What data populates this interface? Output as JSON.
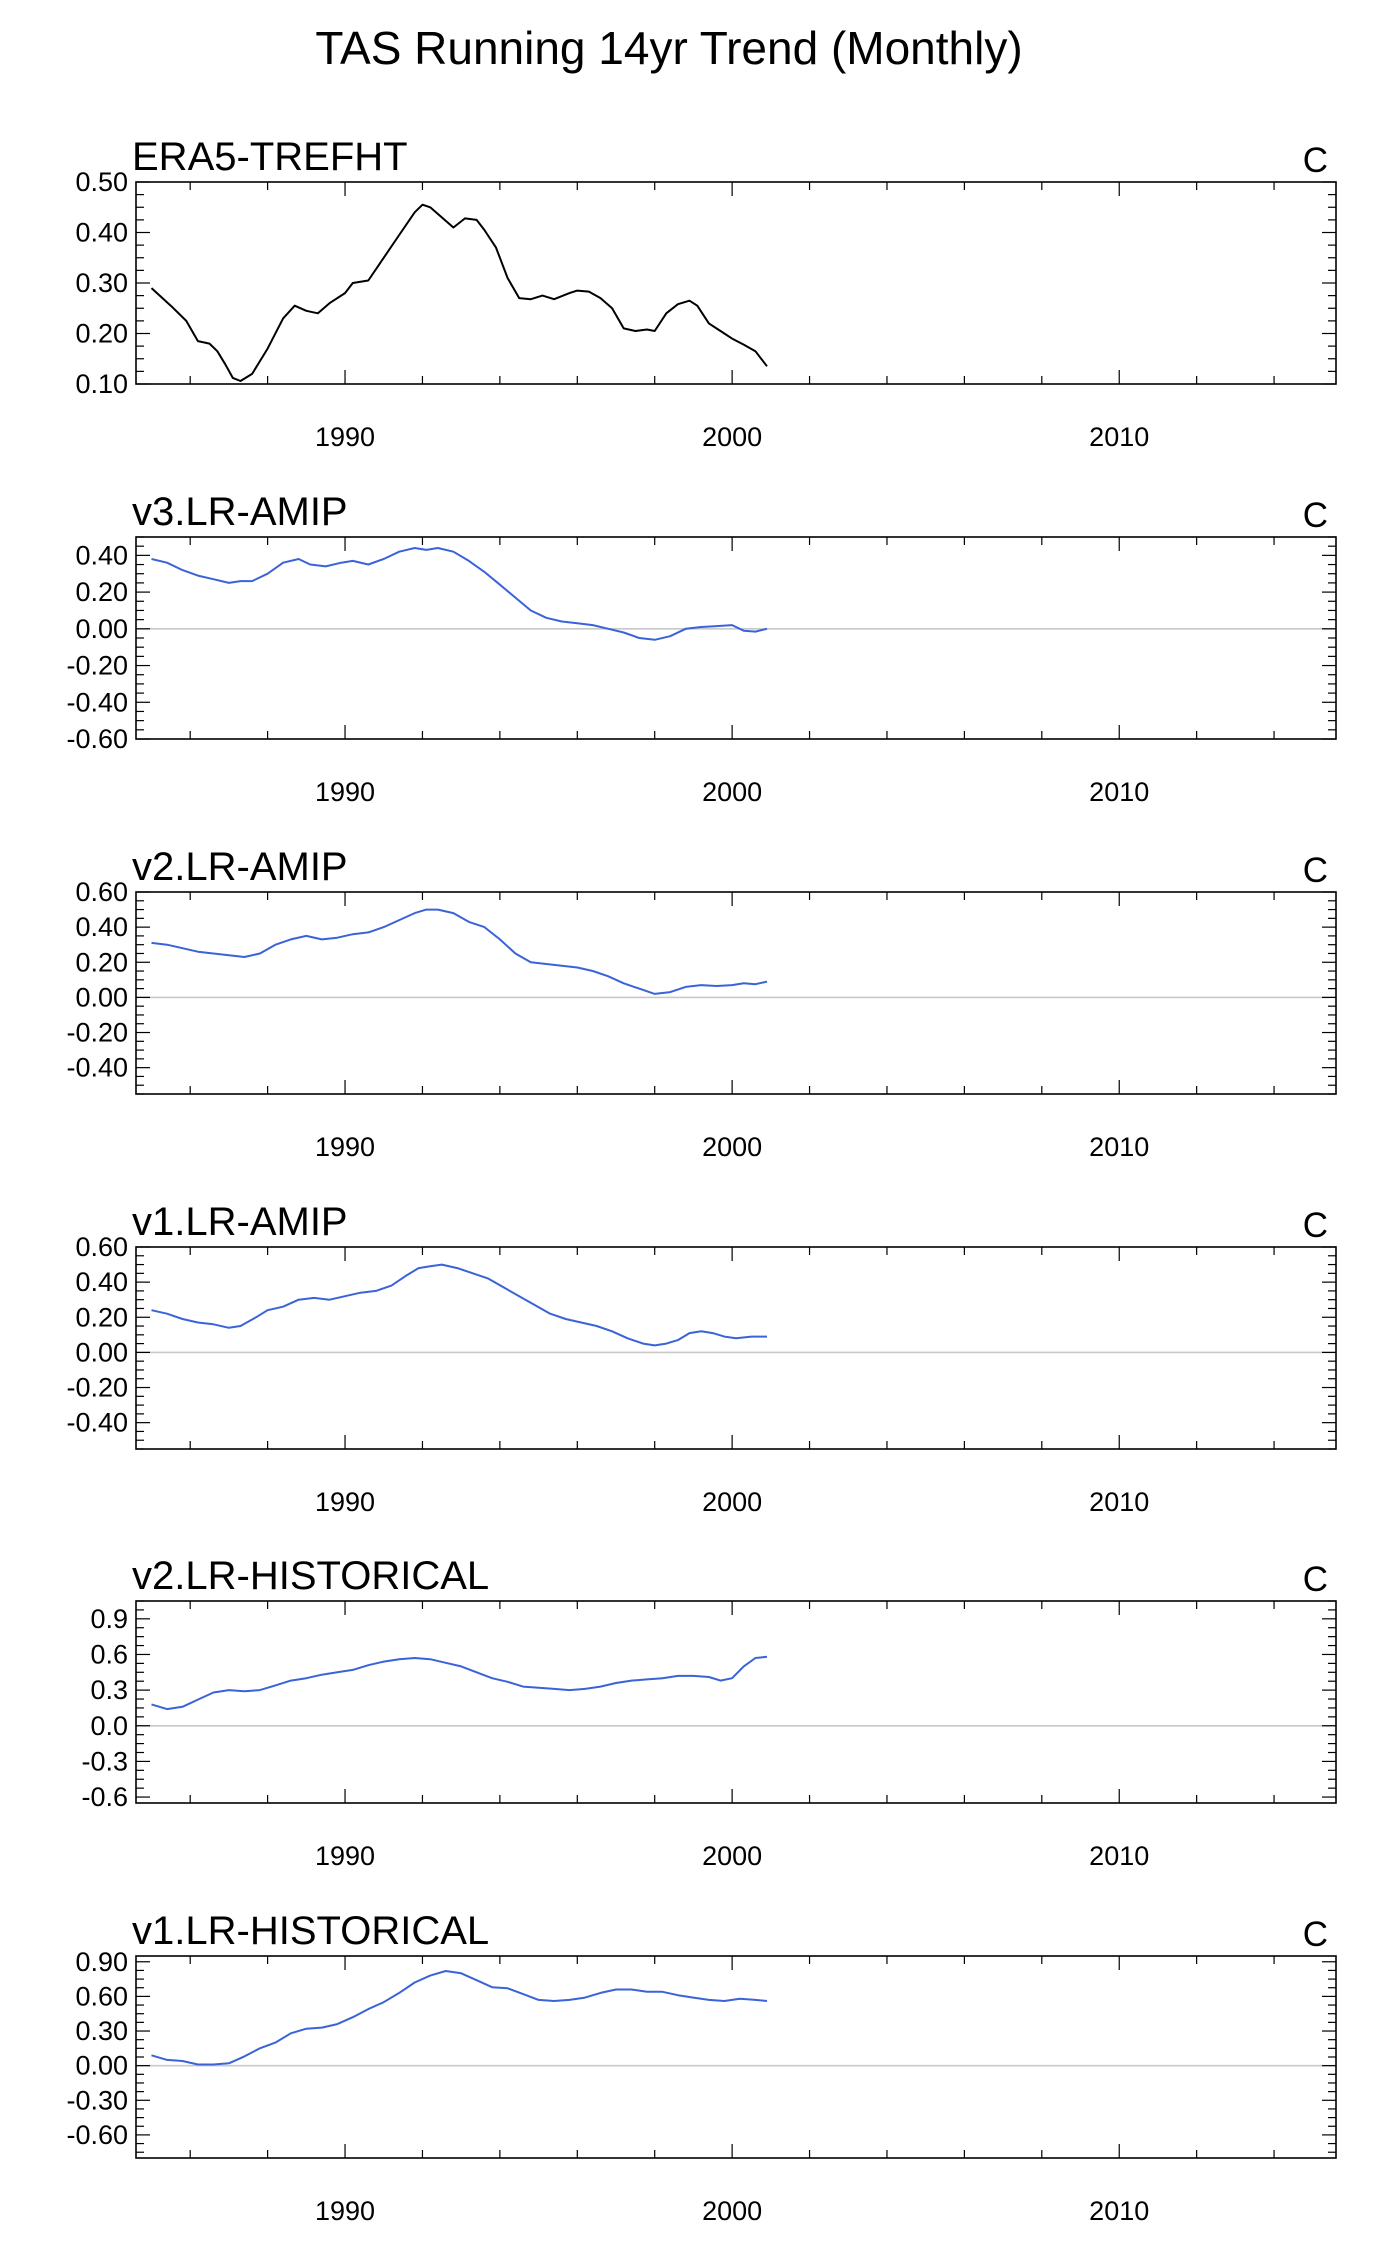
{
  "figure": {
    "title": "TAS Running 14yr Trend (Monthly)"
  },
  "chart_data": [
    {
      "type": "line",
      "title": "ERA5-TREFHT",
      "units": "C",
      "color": "#000000",
      "xlim": [
        1984.6,
        2015.6
      ],
      "ylim": [
        0.1,
        0.5
      ],
      "ytick_values": [
        0.1,
        0.2,
        0.3,
        0.4,
        0.5
      ],
      "ytick_labels": [
        "0.10",
        "0.20",
        "0.30",
        "0.40",
        "0.50"
      ],
      "xtick_values": [
        1990,
        2000,
        2010
      ],
      "xtick_labels": [
        "1990",
        "2000",
        "2010"
      ],
      "zero_line": false,
      "x": [
        1985.0,
        1985.5,
        1985.9,
        1986.2,
        1986.5,
        1986.7,
        1986.9,
        1987.1,
        1987.3,
        1987.6,
        1988.0,
        1988.4,
        1988.7,
        1989.0,
        1989.3,
        1989.6,
        1990.0,
        1990.2,
        1990.6,
        1991.0,
        1991.4,
        1991.8,
        1992.0,
        1992.2,
        1992.5,
        1992.8,
        1993.1,
        1993.4,
        1993.6,
        1993.9,
        1994.2,
        1994.5,
        1994.8,
        1995.1,
        1995.4,
        1995.8,
        1996.0,
        1996.3,
        1996.6,
        1996.9,
        1997.2,
        1997.5,
        1997.8,
        1998.0,
        1998.3,
        1998.6,
        1998.9,
        1999.1,
        1999.4,
        1999.7,
        2000.0,
        2000.3,
        2000.6,
        2000.9
      ],
      "y": [
        0.29,
        0.255,
        0.225,
        0.185,
        0.18,
        0.165,
        0.14,
        0.112,
        0.106,
        0.12,
        0.17,
        0.23,
        0.255,
        0.245,
        0.24,
        0.26,
        0.28,
        0.3,
        0.305,
        0.35,
        0.395,
        0.44,
        0.455,
        0.45,
        0.43,
        0.41,
        0.428,
        0.425,
        0.405,
        0.37,
        0.31,
        0.27,
        0.268,
        0.275,
        0.268,
        0.28,
        0.285,
        0.283,
        0.27,
        0.25,
        0.21,
        0.205,
        0.208,
        0.205,
        0.24,
        0.258,
        0.265,
        0.255,
        0.22,
        0.205,
        0.19,
        0.178,
        0.165,
        0.135
      ]
    },
    {
      "type": "line",
      "title": "v3.LR-AMIP",
      "units": "C",
      "color": "#3a63d9",
      "xlim": [
        1984.6,
        2015.6
      ],
      "ylim": [
        -0.6,
        0.5
      ],
      "ytick_values": [
        -0.6,
        -0.4,
        -0.2,
        0.0,
        0.2,
        0.4
      ],
      "ytick_labels": [
        "-0.60",
        "-0.40",
        "-0.20",
        "0.00",
        "0.20",
        "0.40"
      ],
      "xtick_values": [
        1990,
        2000,
        2010
      ],
      "xtick_labels": [
        "1990",
        "2000",
        "2010"
      ],
      "zero_line": true,
      "x": [
        1985.0,
        1985.4,
        1985.8,
        1986.2,
        1986.6,
        1987.0,
        1987.3,
        1987.6,
        1988.0,
        1988.4,
        1988.8,
        1989.1,
        1989.5,
        1989.9,
        1990.2,
        1990.6,
        1991.0,
        1991.4,
        1991.8,
        1992.1,
        1992.4,
        1992.8,
        1993.2,
        1993.6,
        1994.0,
        1994.4,
        1994.8,
        1995.2,
        1995.6,
        1996.0,
        1996.4,
        1996.8,
        1997.2,
        1997.6,
        1998.0,
        1998.4,
        1998.8,
        1999.2,
        1999.6,
        2000.0,
        2000.3,
        2000.6,
        2000.9
      ],
      "y": [
        0.38,
        0.36,
        0.32,
        0.29,
        0.27,
        0.25,
        0.26,
        0.26,
        0.3,
        0.36,
        0.38,
        0.35,
        0.34,
        0.36,
        0.37,
        0.35,
        0.38,
        0.42,
        0.44,
        0.43,
        0.44,
        0.42,
        0.37,
        0.31,
        0.24,
        0.17,
        0.1,
        0.06,
        0.04,
        0.03,
        0.02,
        0.0,
        -0.02,
        -0.05,
        -0.06,
        -0.04,
        0.0,
        0.01,
        0.015,
        0.02,
        -0.01,
        -0.015,
        0.0
      ]
    },
    {
      "type": "line",
      "title": "v2.LR-AMIP",
      "units": "C",
      "color": "#3a63d9",
      "xlim": [
        1984.6,
        2015.6
      ],
      "ylim": [
        -0.55,
        0.6
      ],
      "ytick_values": [
        -0.4,
        -0.2,
        0.0,
        0.2,
        0.4,
        0.6
      ],
      "ytick_labels": [
        "-0.40",
        "-0.20",
        "0.00",
        "0.20",
        "0.40",
        "0.60"
      ],
      "xtick_values": [
        1990,
        2000,
        2010
      ],
      "xtick_labels": [
        "1990",
        "2000",
        "2010"
      ],
      "zero_line": true,
      "x": [
        1985.0,
        1985.4,
        1985.8,
        1986.2,
        1986.6,
        1987.0,
        1987.4,
        1987.8,
        1988.2,
        1988.6,
        1989.0,
        1989.4,
        1989.8,
        1990.2,
        1990.6,
        1991.0,
        1991.4,
        1991.8,
        1992.1,
        1992.4,
        1992.8,
        1993.2,
        1993.6,
        1994.0,
        1994.4,
        1994.8,
        1995.2,
        1995.6,
        1996.0,
        1996.4,
        1996.8,
        1997.2,
        1997.6,
        1998.0,
        1998.4,
        1998.8,
        1999.2,
        1999.6,
        2000.0,
        2000.3,
        2000.6,
        2000.9
      ],
      "y": [
        0.31,
        0.3,
        0.28,
        0.26,
        0.25,
        0.24,
        0.23,
        0.25,
        0.3,
        0.33,
        0.35,
        0.33,
        0.34,
        0.36,
        0.37,
        0.4,
        0.44,
        0.48,
        0.5,
        0.5,
        0.48,
        0.43,
        0.4,
        0.33,
        0.25,
        0.2,
        0.19,
        0.18,
        0.17,
        0.15,
        0.12,
        0.08,
        0.05,
        0.02,
        0.03,
        0.06,
        0.07,
        0.065,
        0.07,
        0.08,
        0.075,
        0.09
      ]
    },
    {
      "type": "line",
      "title": "v1.LR-AMIP",
      "units": "C",
      "color": "#3a63d9",
      "xlim": [
        1984.6,
        2015.6
      ],
      "ylim": [
        -0.55,
        0.6
      ],
      "ytick_values": [
        -0.4,
        -0.2,
        0.0,
        0.2,
        0.4,
        0.6
      ],
      "ytick_labels": [
        "-0.40",
        "-0.20",
        "0.00",
        "0.20",
        "0.40",
        "0.60"
      ],
      "xtick_values": [
        1990,
        2000,
        2010
      ],
      "xtick_labels": [
        "1990",
        "2000",
        "2010"
      ],
      "zero_line": true,
      "x": [
        1985.0,
        1985.4,
        1985.8,
        1986.2,
        1986.6,
        1987.0,
        1987.3,
        1987.7,
        1988.0,
        1988.4,
        1988.8,
        1989.2,
        1989.6,
        1990.0,
        1990.4,
        1990.8,
        1991.2,
        1991.6,
        1991.9,
        1992.2,
        1992.5,
        1992.9,
        1993.3,
        1993.7,
        1994.1,
        1994.5,
        1994.9,
        1995.3,
        1995.7,
        1996.1,
        1996.5,
        1996.9,
        1997.3,
        1997.7,
        1998.0,
        1998.3,
        1998.6,
        1998.9,
        1999.2,
        1999.5,
        1999.8,
        2000.1,
        2000.5,
        2000.9
      ],
      "y": [
        0.24,
        0.22,
        0.19,
        0.17,
        0.16,
        0.14,
        0.15,
        0.2,
        0.24,
        0.26,
        0.3,
        0.31,
        0.3,
        0.32,
        0.34,
        0.35,
        0.38,
        0.44,
        0.48,
        0.49,
        0.5,
        0.48,
        0.45,
        0.42,
        0.37,
        0.32,
        0.27,
        0.22,
        0.19,
        0.17,
        0.15,
        0.12,
        0.08,
        0.05,
        0.04,
        0.05,
        0.07,
        0.11,
        0.12,
        0.11,
        0.09,
        0.08,
        0.09,
        0.09
      ]
    },
    {
      "type": "line",
      "title": "v2.LR-HISTORICAL",
      "units": "C",
      "color": "#3a63d9",
      "xlim": [
        1984.6,
        2015.6
      ],
      "ylim": [
        -0.65,
        1.05
      ],
      "ytick_values": [
        -0.6,
        -0.3,
        0.0,
        0.3,
        0.6,
        0.9
      ],
      "ytick_labels": [
        "-0.6",
        "-0.3",
        "0.0",
        "0.3",
        "0.6",
        "0.9"
      ],
      "xtick_values": [
        1990,
        2000,
        2010
      ],
      "xtick_labels": [
        "1990",
        "2000",
        "2010"
      ],
      "zero_line": true,
      "x": [
        1985.0,
        1985.4,
        1985.8,
        1986.2,
        1986.6,
        1987.0,
        1987.4,
        1987.8,
        1988.2,
        1988.6,
        1989.0,
        1989.4,
        1989.8,
        1990.2,
        1990.6,
        1991.0,
        1991.4,
        1991.8,
        1992.2,
        1992.6,
        1993.0,
        1993.4,
        1993.8,
        1994.2,
        1994.6,
        1995.0,
        1995.4,
        1995.8,
        1996.2,
        1996.6,
        1997.0,
        1997.4,
        1997.8,
        1998.2,
        1998.6,
        1999.0,
        1999.4,
        1999.7,
        2000.0,
        2000.3,
        2000.6,
        2000.9
      ],
      "y": [
        0.18,
        0.14,
        0.16,
        0.22,
        0.28,
        0.3,
        0.29,
        0.3,
        0.34,
        0.38,
        0.4,
        0.43,
        0.45,
        0.47,
        0.51,
        0.54,
        0.56,
        0.57,
        0.56,
        0.53,
        0.5,
        0.45,
        0.4,
        0.37,
        0.33,
        0.32,
        0.31,
        0.3,
        0.31,
        0.33,
        0.36,
        0.38,
        0.39,
        0.4,
        0.42,
        0.42,
        0.41,
        0.38,
        0.4,
        0.5,
        0.57,
        0.58
      ]
    },
    {
      "type": "line",
      "title": "v1.LR-HISTORICAL",
      "units": "C",
      "color": "#3a63d9",
      "xlim": [
        1984.6,
        2015.6
      ],
      "ylim": [
        -0.8,
        0.95
      ],
      "ytick_values": [
        -0.6,
        -0.3,
        0.0,
        0.3,
        0.6,
        0.9
      ],
      "ytick_labels": [
        "-0.60",
        "-0.30",
        "0.00",
        "0.30",
        "0.60",
        "0.90"
      ],
      "xtick_values": [
        1990,
        2000,
        2010
      ],
      "xtick_labels": [
        "1990",
        "2000",
        "2010"
      ],
      "zero_line": true,
      "x": [
        1985.0,
        1985.4,
        1985.8,
        1986.2,
        1986.6,
        1987.0,
        1987.4,
        1987.8,
        1988.2,
        1988.6,
        1989.0,
        1989.4,
        1989.8,
        1990.2,
        1990.6,
        1991.0,
        1991.4,
        1991.8,
        1992.2,
        1992.6,
        1993.0,
        1993.4,
        1993.8,
        1994.2,
        1994.6,
        1995.0,
        1995.4,
        1995.8,
        1996.2,
        1996.6,
        1997.0,
        1997.4,
        1997.8,
        1998.2,
        1998.6,
        1999.0,
        1999.4,
        1999.8,
        2000.2,
        2000.6,
        2000.9
      ],
      "y": [
        0.09,
        0.05,
        0.04,
        0.01,
        0.01,
        0.02,
        0.08,
        0.15,
        0.2,
        0.28,
        0.32,
        0.33,
        0.36,
        0.42,
        0.49,
        0.55,
        0.63,
        0.72,
        0.78,
        0.82,
        0.8,
        0.74,
        0.68,
        0.67,
        0.62,
        0.57,
        0.56,
        0.57,
        0.59,
        0.63,
        0.66,
        0.66,
        0.64,
        0.64,
        0.61,
        0.59,
        0.57,
        0.56,
        0.58,
        0.57,
        0.56
      ]
    }
  ]
}
